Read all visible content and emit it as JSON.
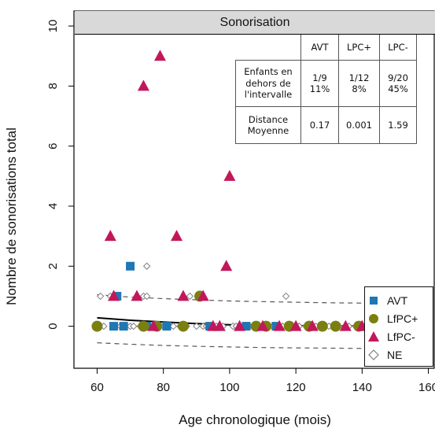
{
  "colors": {
    "AVT": "#1f77b4",
    "LfPC+": "#7a7f10",
    "LfPC-": "#c2185b",
    "NE": "#7f7f7f",
    "strip": "#d9d9d9"
  },
  "panel_title": "Sonorisation",
  "stats_table": {
    "headers": [
      "",
      "AVT",
      "LPC+",
      "LPC-"
    ],
    "rows": [
      {
        "label": "Enfants en dehors de l'intervalle",
        "values": [
          "1/9 11%",
          "1/12 8%",
          "9/20 45%"
        ]
      },
      {
        "label": "Distance Moyenne",
        "values": [
          "0.17",
          "0.001",
          "1.59"
        ]
      }
    ]
  },
  "legend": {
    "position": "bottom-right",
    "items": [
      {
        "label": "AVT",
        "shape": "square",
        "series": "AVT"
      },
      {
        "label": "LfPC+",
        "shape": "circle",
        "series": "LfPC+"
      },
      {
        "label": "LfPC-",
        "shape": "triangle",
        "series": "LfPC-"
      },
      {
        "label": "NE",
        "shape": "diamond",
        "series": "NE"
      }
    ]
  },
  "chart_data": {
    "type": "scatter",
    "title": "Sonorisation",
    "xlabel": "Age chronologique (mois)",
    "ylabel": "Nombre de sonorisations total",
    "xlim": [
      53,
      162
    ],
    "ylim": [
      -1.4,
      10.5
    ],
    "xticks": [
      "60",
      "80",
      "100",
      "120",
      "140",
      "160"
    ],
    "yticks": [
      "0",
      "2",
      "4",
      "6",
      "8",
      "10"
    ],
    "grid": false,
    "series": [
      {
        "name": "AVT",
        "shape": "square",
        "points": [
          [
            66,
            1
          ],
          [
            70,
            2
          ],
          [
            65,
            0
          ],
          [
            68,
            0
          ],
          [
            75,
            0
          ],
          [
            81,
            0
          ],
          [
            94,
            0
          ],
          [
            105,
            0
          ],
          [
            114,
            0
          ]
        ]
      },
      {
        "name": "LfPC+",
        "shape": "circle",
        "points": [
          [
            60,
            0
          ],
          [
            74,
            0
          ],
          [
            78,
            0
          ],
          [
            86,
            0
          ],
          [
            91,
            1
          ],
          [
            108,
            0
          ],
          [
            111,
            0
          ],
          [
            118,
            0
          ],
          [
            124,
            0
          ],
          [
            128,
            0
          ],
          [
            132,
            0
          ],
          [
            139,
            0
          ]
        ]
      },
      {
        "name": "LfPC-",
        "shape": "triangle",
        "points": [
          [
            64,
            3
          ],
          [
            65,
            1
          ],
          [
            72,
            1
          ],
          [
            74,
            8
          ],
          [
            79,
            9
          ],
          [
            84,
            3
          ],
          [
            86,
            1
          ],
          [
            92,
            1
          ],
          [
            95,
            0
          ],
          [
            97,
            0
          ],
          [
            99,
            2
          ],
          [
            100,
            5
          ],
          [
            103,
            0
          ],
          [
            110,
            0
          ],
          [
            115,
            0
          ],
          [
            120,
            0
          ],
          [
            125,
            0
          ],
          [
            135,
            0
          ],
          [
            140,
            0
          ],
          [
            77,
            0
          ]
        ]
      },
      {
        "name": "NE",
        "shape": "diamond",
        "points": [
          [
            61,
            1
          ],
          [
            62,
            0
          ],
          [
            64,
            1
          ],
          [
            67,
            0
          ],
          [
            68,
            0
          ],
          [
            70,
            0
          ],
          [
            71,
            0
          ],
          [
            72,
            1
          ],
          [
            73,
            0
          ],
          [
            74,
            1
          ],
          [
            75,
            2
          ],
          [
            75,
            1
          ],
          [
            76,
            0
          ],
          [
            78,
            0
          ],
          [
            80,
            0
          ],
          [
            82,
            0
          ],
          [
            83,
            0
          ],
          [
            85,
            0
          ],
          [
            87,
            0
          ],
          [
            88,
            1
          ],
          [
            90,
            0
          ],
          [
            92,
            0
          ],
          [
            93,
            0
          ],
          [
            96,
            0
          ],
          [
            98,
            0
          ],
          [
            101,
            0
          ],
          [
            102,
            0
          ],
          [
            104,
            0
          ],
          [
            106,
            0
          ],
          [
            107,
            0
          ],
          [
            109,
            0
          ],
          [
            112,
            0
          ],
          [
            113,
            0
          ],
          [
            116,
            0
          ],
          [
            117,
            1
          ],
          [
            119,
            0
          ],
          [
            121,
            0
          ],
          [
            123,
            0
          ],
          [
            126,
            0
          ],
          [
            130,
            0
          ],
          [
            133,
            0
          ],
          [
            136,
            0
          ],
          [
            138,
            0
          ]
        ]
      }
    ],
    "fit": {
      "x": [
        60,
        70,
        80,
        90,
        100,
        110,
        120,
        130,
        140
      ],
      "y": [
        0.28,
        0.2,
        0.14,
        0.09,
        0.05,
        0.03,
        0.02,
        0.01,
        0.01
      ]
    },
    "bounds": {
      "upper": {
        "x": [
          60,
          70,
          80,
          90,
          100,
          110,
          120,
          130,
          140
        ],
        "y": [
          1.05,
          0.97,
          0.92,
          0.88,
          0.84,
          0.82,
          0.8,
          0.78,
          0.77
        ]
      },
      "lower": {
        "x": [
          60,
          70,
          80,
          90,
          100,
          110,
          120,
          130,
          140
        ],
        "y": [
          -0.55,
          -0.6,
          -0.64,
          -0.67,
          -0.69,
          -0.71,
          -0.72,
          -0.73,
          -0.74
        ]
      }
    }
  }
}
